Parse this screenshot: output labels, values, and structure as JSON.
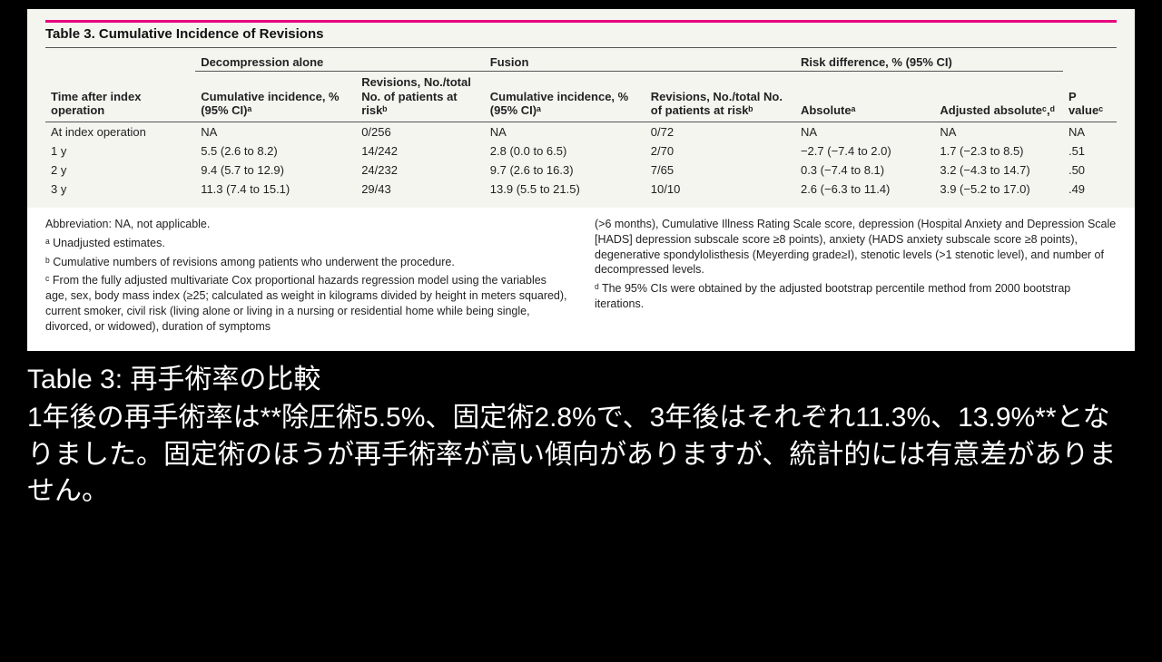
{
  "table": {
    "title": "Table 3. Cumulative Incidence of Revisions",
    "group_headers": {
      "time": "Time after index operation",
      "decomp": "Decompression alone",
      "fusion": "Fusion",
      "riskdiff": "Risk difference, % (95% CI)",
      "pvalue": "P valueᶜ"
    },
    "sub_headers": {
      "cum_inc": "Cumulative incidence, % (95% CI)ᵃ",
      "revisions": "Revisions, No./total No. of patients at riskᵇ",
      "absolute": "Absoluteᵃ",
      "adjusted": "Adjusted absoluteᶜ,ᵈ"
    },
    "rows": [
      {
        "time": "At index operation",
        "d_ci": "NA",
        "d_rev": "0/256",
        "f_ci": "NA",
        "f_rev": "0/72",
        "abs": "NA",
        "adj": "NA",
        "p": "NA"
      },
      {
        "time": "1 y",
        "d_ci": "5.5 (2.6 to 8.2)",
        "d_rev": "14/242",
        "f_ci": "2.8 (0.0 to 6.5)",
        "f_rev": "2/70",
        "abs": "−2.7 (−7.4 to 2.0)",
        "adj": "1.7 (−2.3 to 8.5)",
        "p": ".51"
      },
      {
        "time": "2 y",
        "d_ci": "9.4 (5.7 to 12.9)",
        "d_rev": "24/232",
        "f_ci": "9.7 (2.6 to 16.3)",
        "f_rev": "7/65",
        "abs": "0.3 (−7.4 to 8.1)",
        "adj": "3.2 (−4.3 to 14.7)",
        "p": ".50"
      },
      {
        "time": "3 y",
        "d_ci": "11.3 (7.4 to 15.1)",
        "d_rev": "29/43",
        "f_ci": "13.9 (5.5 to 21.5)",
        "f_rev": "10/10",
        "abs": "2.6 (−6.3 to 11.4)",
        "adj": "3.9 (−5.2 to 17.0)",
        "p": ".49"
      }
    ],
    "columns": [
      "time",
      "d_ci",
      "d_rev",
      "f_ci",
      "f_rev",
      "abs",
      "adj",
      "p"
    ],
    "col_widths_pct": [
      14,
      15,
      12,
      15,
      14,
      13,
      12,
      5
    ],
    "colors": {
      "accent_border": "#e6007e",
      "table_bg": "#f5f5f0",
      "text": "#222222",
      "rule": "#555555",
      "page_bg": "#000000",
      "panel_bg": "#ffffff",
      "caption_text": "#ffffff"
    },
    "fonts": {
      "table_title_pt": 15,
      "table_body_pt": 13,
      "footnote_pt": 12.5,
      "caption_pt": 30
    }
  },
  "footnotes": {
    "left": [
      "Abbreviation: NA, not applicable.",
      "ᵃ Unadjusted estimates.",
      "ᵇ Cumulative numbers of revisions among patients who underwent the procedure.",
      "ᶜ From the fully adjusted multivariate Cox proportional hazards regression model using the variables age, sex, body mass index (≥25; calculated as weight in kilograms divided by height in meters squared), current smoker, civil risk (living alone or living in a nursing or residential home while being single, divorced, or widowed), duration of symptoms"
    ],
    "right": [
      "(>6 months), Cumulative Illness Rating Scale score, depression (Hospital Anxiety and Depression Scale [HADS] depression subscale score ≥8 points), anxiety (HADS anxiety subscale score ≥8 points), degenerative spondylolisthesis (Meyerding grade≥I), stenotic levels (>1 stenotic level), and number of decompressed levels.",
      "ᵈ The 95% CIs were obtained by the adjusted bootstrap percentile method from 2000 bootstrap iterations."
    ]
  },
  "caption": {
    "title": "Table 3: 再手術率の比較",
    "body": "1年後の再手術率は**除圧術5.5%、固定術2.8%で、3年後はそれぞれ11.3%、13.9%**となりました。固定術のほうが再手術率が高い傾向がありますが、統計的には有意差がありません。"
  }
}
